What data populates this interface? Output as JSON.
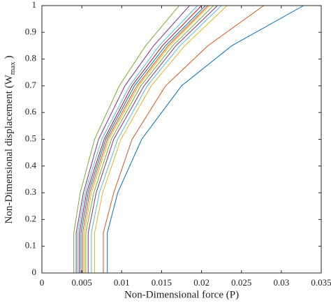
{
  "chart_data": {
    "type": "line",
    "xlabel": "Non-Dimensional force (P)",
    "ylabel": {
      "text": "Non-Dimensional displacement (W",
      "subscript": "max",
      "suffix": " )"
    },
    "xlim": [
      0,
      0.035
    ],
    "xticks": [
      0,
      0.005,
      0.01,
      0.015,
      0.02,
      0.025,
      0.03,
      0.035
    ],
    "ylim": [
      0,
      1
    ],
    "yticks": [
      0,
      0.1,
      0.2,
      0.3,
      0.4,
      0.5,
      0.6,
      0.7,
      0.8,
      0.9,
      1
    ],
    "series": [
      {
        "color": "#0072bd",
        "x": [
          0.0082,
          0.0082,
          0.0095,
          0.0125,
          0.0175,
          0.0238,
          0.0328
        ],
        "values": [
          0,
          0.15,
          0.3,
          0.5,
          0.7,
          0.85,
          1
        ]
      },
      {
        "color": "#d95319",
        "x": [
          0.0077,
          0.0077,
          0.009,
          0.0113,
          0.0155,
          0.0208,
          0.0278
        ],
        "values": [
          0,
          0.15,
          0.3,
          0.5,
          0.7,
          0.85,
          1
        ]
      },
      {
        "color": "#edb120",
        "x": [
          0.0066,
          0.0066,
          0.0076,
          0.0099,
          0.0137,
          0.0179,
          0.0232
        ],
        "values": [
          0,
          0.15,
          0.3,
          0.5,
          0.7,
          0.85,
          1
        ]
      },
      {
        "color": "#4dbeee",
        "x": [
          0.0062,
          0.0062,
          0.0072,
          0.0095,
          0.0132,
          0.0173,
          0.0225
        ],
        "values": [
          0,
          0.15,
          0.3,
          0.5,
          0.7,
          0.85,
          1
        ]
      },
      {
        "color": "#7e2f8e",
        "x": [
          0.0058,
          0.0058,
          0.0068,
          0.009,
          0.0128,
          0.0168,
          0.022
        ],
        "values": [
          0,
          0.15,
          0.3,
          0.5,
          0.7,
          0.85,
          1
        ]
      },
      {
        "color": "#77ac30",
        "x": [
          0.0055,
          0.0055,
          0.0065,
          0.0087,
          0.0124,
          0.0164,
          0.0215
        ],
        "values": [
          0,
          0.15,
          0.3,
          0.5,
          0.7,
          0.85,
          1
        ]
      },
      {
        "color": "#edb120",
        "x": [
          0.0053,
          0.0053,
          0.0062,
          0.0084,
          0.0121,
          0.016,
          0.021
        ],
        "values": [
          0,
          0.15,
          0.3,
          0.5,
          0.7,
          0.85,
          1
        ]
      },
      {
        "color": "#d95319",
        "x": [
          0.0051,
          0.0051,
          0.006,
          0.0082,
          0.0119,
          0.0158,
          0.0208
        ],
        "values": [
          0,
          0.15,
          0.3,
          0.5,
          0.7,
          0.85,
          1
        ]
      },
      {
        "color": "#0072bd",
        "x": [
          0.0049,
          0.0049,
          0.0058,
          0.008,
          0.0116,
          0.0155,
          0.0205
        ],
        "values": [
          0,
          0.15,
          0.3,
          0.5,
          0.7,
          0.85,
          1
        ]
      },
      {
        "color": "#a2142f",
        "x": [
          0.0047,
          0.0047,
          0.0056,
          0.0078,
          0.0113,
          0.0151,
          0.02
        ],
        "values": [
          0,
          0.15,
          0.3,
          0.5,
          0.7,
          0.85,
          1
        ]
      },
      {
        "color": "#4dbeee",
        "x": [
          0.0045,
          0.0045,
          0.0054,
          0.0075,
          0.011,
          0.0147,
          0.0195
        ],
        "values": [
          0,
          0.15,
          0.3,
          0.5,
          0.7,
          0.85,
          1
        ]
      },
      {
        "color": "#7e2f8e",
        "x": [
          0.0043,
          0.0043,
          0.0052,
          0.0071,
          0.0104,
          0.014,
          0.0185
        ],
        "values": [
          0,
          0.15,
          0.3,
          0.5,
          0.7,
          0.85,
          1
        ]
      },
      {
        "color": "#77ac30",
        "x": [
          0.004,
          0.004,
          0.0048,
          0.0066,
          0.0097,
          0.013,
          0.0172
        ],
        "values": [
          0,
          0.15,
          0.3,
          0.5,
          0.7,
          0.85,
          1
        ]
      }
    ]
  }
}
